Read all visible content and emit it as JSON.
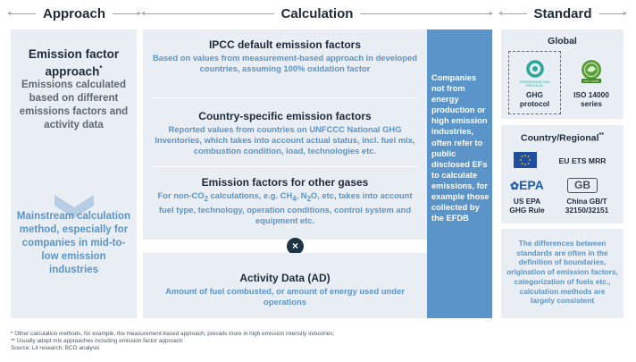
{
  "headers": {
    "approach": "Approach",
    "calculation": "Calculation",
    "standard": "Standard"
  },
  "approach": {
    "title": "Emission factor approach",
    "title_mark": "*",
    "description": "Emissions calculated based on different emissions factors and activity data",
    "conclusion": "Mainstream calculation method, especially for companies in mid-to-low emission industries"
  },
  "calculation": {
    "ipcc": {
      "title": "IPCC default emission factors",
      "desc": "Based on values from measurement-based approach in developed countries, assuming 100% oxidation factor"
    },
    "country": {
      "title": "Country-specific emission factors",
      "desc": "Reported values from countries on UNFCCC National GHG Inventories, which takes into account actual status, incl. fuel mix, combustion condition, load, technologies etc."
    },
    "other": {
      "title": "Emission factors for other gases",
      "desc_line1_a": "For non-CO",
      "sub1": "2",
      "desc_line1_b": " calculations, e.g. CH",
      "sub2": "4",
      "desc_line1_c": ", N",
      "sub3": "2",
      "desc_line1_d": "O, etc, takes into",
      "desc_rest": "account fuel type, technology, operation conditions, control system and equipment etc."
    },
    "operator": "×",
    "activity": {
      "title": "Activity Data (AD)",
      "desc": "Amount of fuel combusted, or amount of energy used under operations"
    },
    "note": "Companies not from energy production or high emission industries, often refer to public disclosed EFs to calculate emissions, for example those collected by the EFDB"
  },
  "standard": {
    "global_title": "Global",
    "ghg_logo_text": "GREENHOUSE GAS PROTOCOL",
    "ghg_label": "GHG protocol",
    "iso_logo_text": "ISO 14000",
    "iso_label": "ISO 14000 series",
    "country_title": "Country/Regional",
    "country_mark": "**",
    "eu_label": "EU ETS MRR",
    "epa_logo_text": "EPA",
    "epa_label": "US EPA GHG Rule",
    "gb_logo_text": "GB",
    "gb_label": "China GB/T 32150/32151",
    "note": "The differences between standards are often in the definition of boundaries, origination of emission factors, categorization of fuels etc., calculation methods are largely consistent"
  },
  "footnotes": {
    "line1": "* Other calculation methods, for example, the measurement-based approach, prevails more in high emission intensity industries;",
    "line2": "** Usually adopt mix approaches including emission factor approach",
    "line3": "Source: Lit research; BCG analysis"
  },
  "colors": {
    "panel": "#e9eef4",
    "accent_blue": "#5b94c8",
    "dark_navy": "#1f3346",
    "grey_text": "#5f6770",
    "highlight_red": "#d23a3a",
    "ghg_green": "#2aa79b",
    "iso_green": "#5a9e3a",
    "eu_blue": "#1f4fa0",
    "epa_blue": "#1d5ba8"
  }
}
